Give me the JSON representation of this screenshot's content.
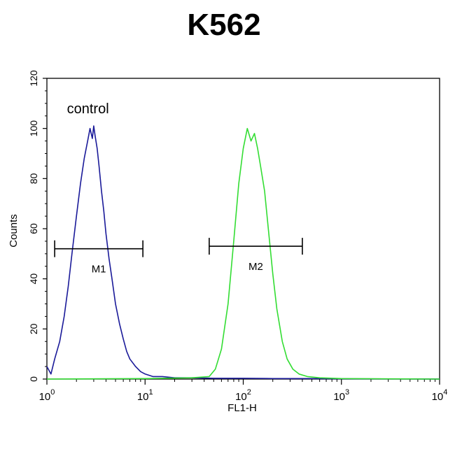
{
  "chart_data": {
    "type": "line",
    "title": "K562",
    "xlabel": "FL1-H",
    "ylabel": "Counts",
    "x_scale": "log",
    "xlim": [
      1,
      10000
    ],
    "ylim": [
      0,
      120
    ],
    "x_ticks": [
      {
        "value": 1,
        "base": "10",
        "exp": "0"
      },
      {
        "value": 10,
        "base": "10",
        "exp": "1"
      },
      {
        "value": 100,
        "base": "10",
        "exp": "2"
      },
      {
        "value": 1000,
        "base": "10",
        "exp": "3"
      },
      {
        "value": 10000,
        "base": "10",
        "exp": "4"
      }
    ],
    "y_ticks": [
      "0",
      "20",
      "40",
      "60",
      "80",
      "100",
      "120"
    ],
    "grid": false,
    "annotations": [
      {
        "text": "control",
        "x": 1.6,
        "y": 106
      }
    ],
    "gates": [
      {
        "label": "M1",
        "x_start": 1.2,
        "x_end": 9.5,
        "y": 52
      },
      {
        "label": "M2",
        "x_start": 45,
        "x_end": 400,
        "y": 53
      }
    ],
    "series": [
      {
        "color": "#1a1a99",
        "x": [
          1.0,
          1.1,
          1.2,
          1.35,
          1.5,
          1.65,
          1.8,
          2.0,
          2.2,
          2.4,
          2.6,
          2.75,
          2.9,
          3.0,
          3.1,
          3.25,
          3.4,
          3.6,
          3.8,
          4.0,
          4.3,
          4.6,
          5.0,
          5.5,
          6.0,
          6.5,
          7.0,
          8.0,
          9.0,
          10.0,
          12.0,
          15.0,
          20.0,
          30.0,
          50.0,
          100.0,
          200.0,
          500.0,
          1000.0,
          10000.0
        ],
        "y": [
          5,
          2,
          8,
          15,
          25,
          37,
          50,
          65,
          78,
          88,
          95,
          100,
          96,
          101,
          97,
          92,
          85,
          75,
          67,
          58,
          48,
          40,
          30,
          22,
          16,
          11,
          8,
          5,
          3,
          2,
          1,
          1,
          0.5,
          0.5,
          0.3,
          0.3,
          0.2,
          0.2,
          0.1,
          0
        ]
      },
      {
        "color": "#33dd33",
        "x": [
          1.0,
          10.0,
          30.0,
          45.0,
          52.0,
          60.0,
          70.0,
          80.0,
          90.0,
          100.0,
          110.0,
          120.0,
          130.0,
          140.0,
          150.0,
          165.0,
          180.0,
          200.0,
          220.0,
          250.0,
          280.0,
          320.0,
          370.0,
          450.0,
          600.0,
          1000.0,
          10000.0
        ],
        "y": [
          0,
          0.2,
          0.5,
          1,
          4,
          12,
          30,
          55,
          78,
          92,
          100,
          95,
          98,
          92,
          85,
          75,
          60,
          42,
          28,
          15,
          8,
          4,
          2,
          1,
          0.5,
          0.2,
          0
        ]
      }
    ]
  }
}
